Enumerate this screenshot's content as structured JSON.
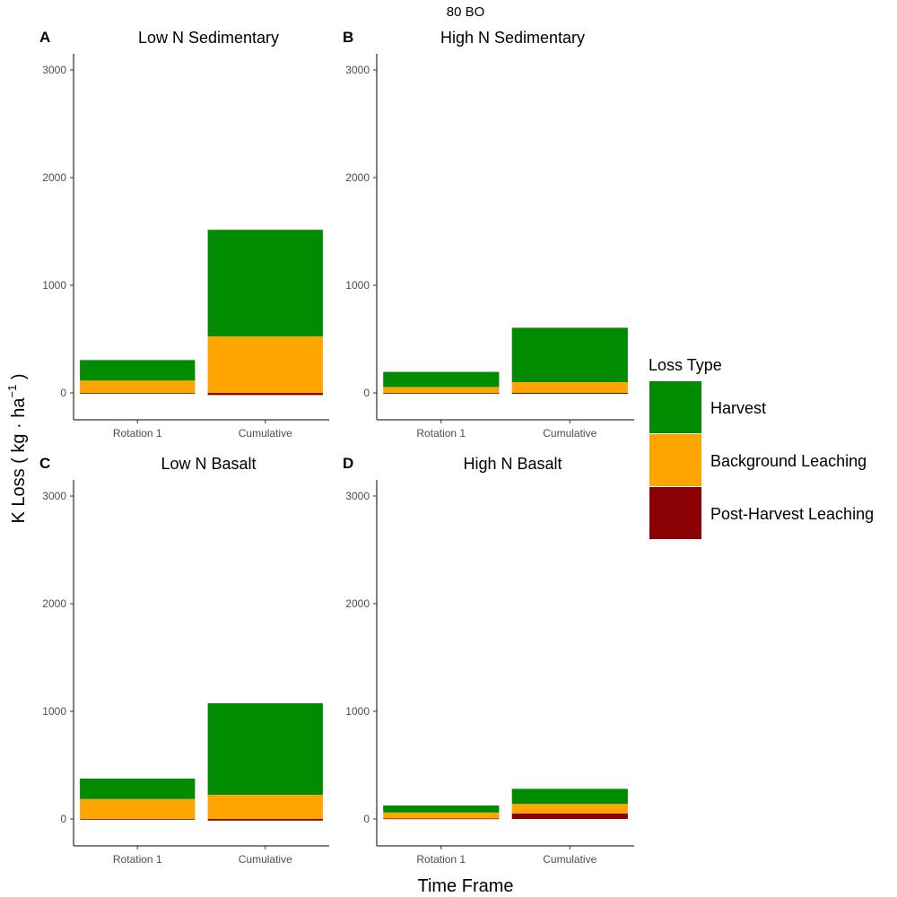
{
  "figure": {
    "title": "80 BO",
    "ylabel": {
      "main": "K Loss ( kg · ha",
      "sup": "−1",
      "close": " )"
    },
    "xlabel": "Time Frame"
  },
  "legend": {
    "title": "Loss Type",
    "items": [
      {
        "key": "harvest",
        "label": "Harvest",
        "color": "#008B00"
      },
      {
        "key": "background",
        "label": "Background Leaching",
        "color": "#FFA500"
      },
      {
        "key": "postharvest",
        "label": "Post-Harvest Leaching",
        "color": "#8B0000"
      }
    ]
  },
  "chart_data": [
    {
      "panel": "A",
      "title": "Low N Sedimentary",
      "type": "bar",
      "stacked": true,
      "categories": [
        "Rotation 1",
        "Cumulative"
      ],
      "series": [
        {
          "name": "Post-Harvest Leaching",
          "values": [
            -5,
            -20
          ]
        },
        {
          "name": "Background Leaching",
          "values": [
            115,
            525
          ]
        },
        {
          "name": "Harvest",
          "values": [
            190,
            990
          ]
        }
      ],
      "yticks": [
        0,
        1000,
        2000,
        3000
      ],
      "ylim": [
        -250,
        3150
      ]
    },
    {
      "panel": "B",
      "title": "High N Sedimentary",
      "type": "bar",
      "stacked": true,
      "categories": [
        "Rotation 1",
        "Cumulative"
      ],
      "series": [
        {
          "name": "Post-Harvest Leaching",
          "values": [
            -5,
            -8
          ]
        },
        {
          "name": "Background Leaching",
          "values": [
            55,
            100
          ]
        },
        {
          "name": "Harvest",
          "values": [
            140,
            505
          ]
        }
      ],
      "yticks": [
        0,
        1000,
        2000,
        3000
      ],
      "ylim": [
        -250,
        3150
      ]
    },
    {
      "panel": "C",
      "title": "Low N Basalt",
      "type": "bar",
      "stacked": true,
      "categories": [
        "Rotation 1",
        "Cumulative"
      ],
      "series": [
        {
          "name": "Post-Harvest Leaching",
          "values": [
            -5,
            -15
          ]
        },
        {
          "name": "Background Leaching",
          "values": [
            185,
            225
          ]
        },
        {
          "name": "Harvest",
          "values": [
            190,
            850
          ]
        }
      ],
      "yticks": [
        0,
        1000,
        2000,
        3000
      ],
      "ylim": [
        -250,
        3150
      ]
    },
    {
      "panel": "D",
      "title": "High N Basalt",
      "type": "bar",
      "stacked": true,
      "categories": [
        "Rotation 1",
        "Cumulative"
      ],
      "series": [
        {
          "name": "Post-Harvest Leaching",
          "values": [
            5,
            50
          ]
        },
        {
          "name": "Background Leaching",
          "values": [
            55,
            90
          ]
        },
        {
          "name": "Harvest",
          "values": [
            65,
            140
          ]
        }
      ],
      "yticks": [
        0,
        1000,
        2000,
        3000
      ],
      "ylim": [
        -250,
        3150
      ]
    }
  ]
}
